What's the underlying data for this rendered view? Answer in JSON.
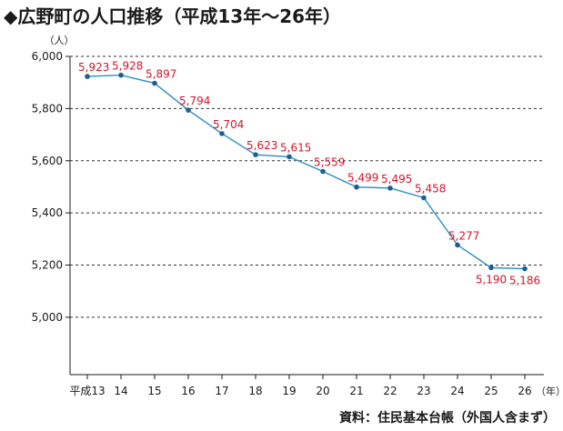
{
  "title": "◆広野町の人口推移（平成13年～26年）",
  "source": "資料：住民基本台帳（外国人含まず）",
  "chart_data": {
    "type": "line",
    "categories": [
      "平成13",
      "14",
      "15",
      "16",
      "17",
      "18",
      "19",
      "20",
      "21",
      "22",
      "23",
      "24",
      "25",
      "26"
    ],
    "values": [
      5923,
      5928,
      5897,
      5794,
      5704,
      5623,
      5615,
      5559,
      5499,
      5495,
      5458,
      5277,
      5190,
      5186
    ],
    "value_labels": [
      "5,923",
      "5,928",
      "5,897",
      "5,794",
      "5,704",
      "5,623",
      "5,615",
      "5,559",
      "5,499",
      "5,495",
      "5,458",
      "5,277",
      "5,190",
      "5,186"
    ],
    "y_unit": "（人）",
    "x_unit": "（年）",
    "ylim": [
      4780,
      6000
    ],
    "yticks": [
      5000,
      5200,
      5400,
      5600,
      5800,
      6000
    ],
    "ytick_labels": [
      "5,000",
      "5,200",
      "5,400",
      "5,600",
      "5,800",
      "6,000"
    ],
    "grid": true,
    "line_color": "#2a8fc4",
    "marker_color": "#1d5f8f",
    "label_color": "#d4142a",
    "grid_color": "#333333"
  }
}
